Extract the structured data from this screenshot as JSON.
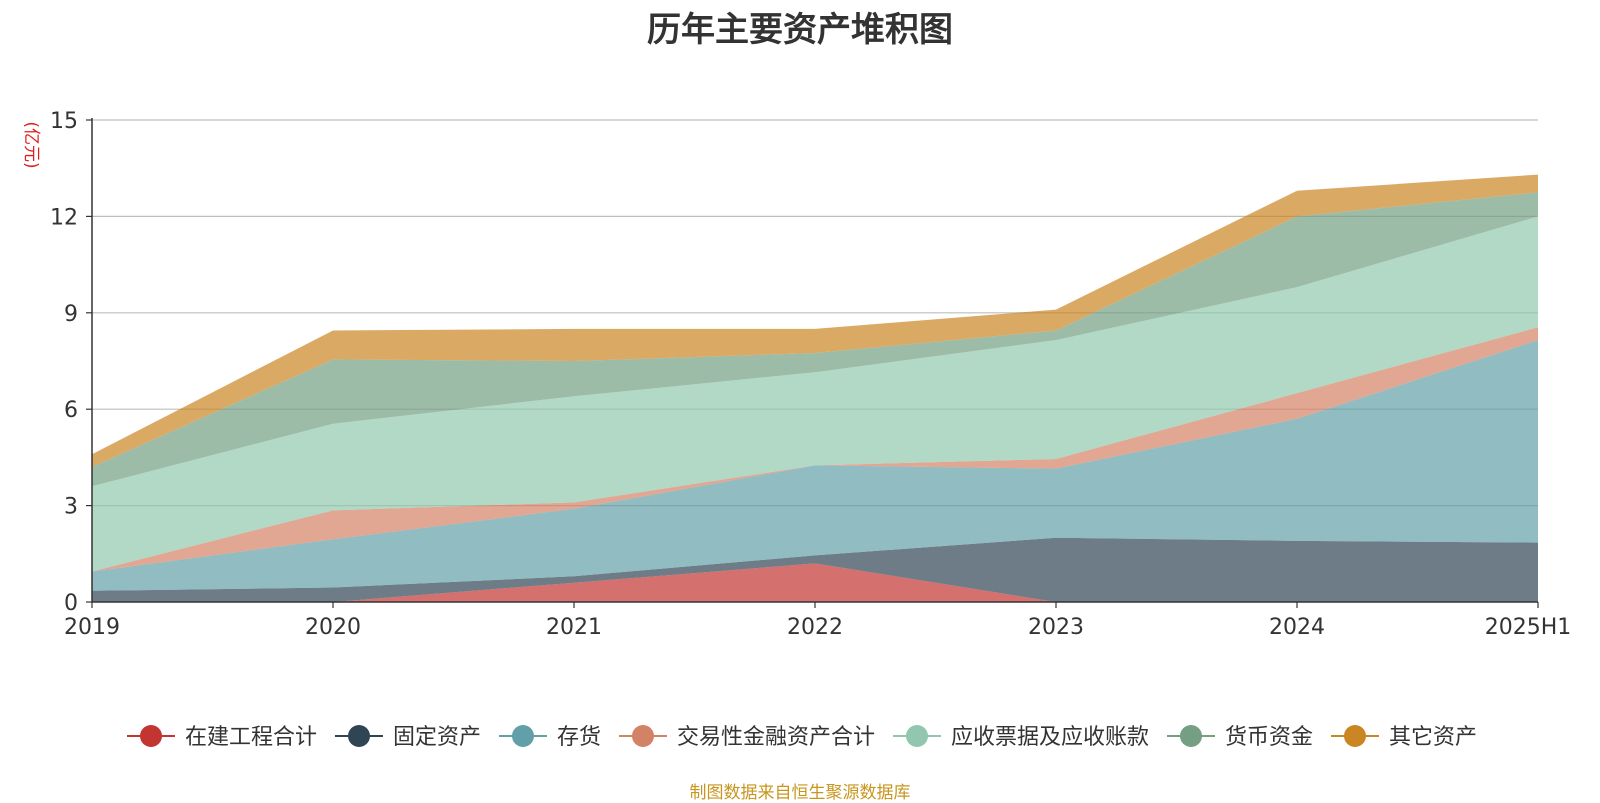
{
  "chart_data": {
    "type": "area",
    "stacked": true,
    "title": "历年主要资产堆积图",
    "unit_label": "(亿元)",
    "source": "制图数据来自恒生聚源数据库",
    "categories": [
      "2019",
      "2020",
      "2021",
      "2022",
      "2023",
      "2024",
      "2025H1"
    ],
    "y_ticks": [
      "0",
      "3",
      "6",
      "9",
      "12",
      "15"
    ],
    "ylim": [
      0,
      15
    ],
    "grid": true,
    "legend_position": "bottom",
    "series": [
      {
        "name": "在建工程合计",
        "color": "#c23531",
        "values": [
          0.0,
          0.0,
          0.6,
          1.2,
          0.0,
          0.0,
          0.0
        ]
      },
      {
        "name": "固定资产",
        "color": "#2f4554",
        "values": [
          0.35,
          0.45,
          0.2,
          0.25,
          2.0,
          1.9,
          1.85
        ]
      },
      {
        "name": "存货",
        "color": "#61a0a8",
        "values": [
          0.6,
          1.5,
          2.1,
          2.8,
          2.15,
          3.8,
          6.3
        ]
      },
      {
        "name": "交易性金融资产合计",
        "color": "#d48265",
        "values": [
          0.0,
          0.9,
          0.2,
          0.0,
          0.3,
          0.8,
          0.4
        ]
      },
      {
        "name": "应收票据及应收账款",
        "color": "#91c7ae",
        "values": [
          2.65,
          2.7,
          3.3,
          2.9,
          3.7,
          3.3,
          3.45
        ]
      },
      {
        "name": "货币资金",
        "color": "#749f83",
        "values": [
          0.6,
          2.0,
          1.1,
          0.6,
          0.3,
          2.2,
          0.75
        ]
      },
      {
        "name": "其它资产",
        "color": "#ca8622",
        "values": [
          0.4,
          0.9,
          1.0,
          0.75,
          0.65,
          0.8,
          0.55
        ]
      }
    ]
  }
}
